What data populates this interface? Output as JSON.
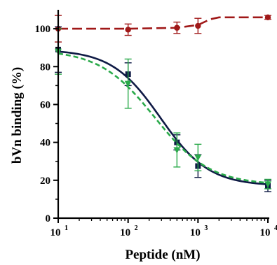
{
  "chart_data": {
    "type": "scatter",
    "xlabel": "Peptide (nM)",
    "ylabel": "bVn binding (%)",
    "xscale": "log",
    "xlim": [
      10,
      10000
    ],
    "ylim": [
      0,
      110
    ],
    "grid": false,
    "legend": "none",
    "x_ticks": [
      {
        "base": "10",
        "exp": "1",
        "value": 10
      },
      {
        "base": "10",
        "exp": "2",
        "value": 100
      },
      {
        "base": "10",
        "exp": "3",
        "value": 1000
      },
      {
        "base": "10",
        "exp": "4",
        "value": 10000
      }
    ],
    "y_ticks": [
      "0",
      "20",
      "40",
      "60",
      "80",
      "100"
    ],
    "series": [
      {
        "color": "#a01818",
        "line_style": "long-dash",
        "marker": "circle",
        "x": [
          10,
          100,
          500,
          1000,
          10000
        ],
        "y": [
          100,
          99.5,
          100.5,
          101.5,
          106
        ],
        "err": [
          7,
          3,
          3,
          4,
          1
        ],
        "curve_x": [
          10,
          100,
          500,
          1000,
          1500,
          2000,
          3000,
          10000
        ],
        "curve_y": [
          100,
          100,
          100.5,
          102,
          105,
          106,
          106,
          106
        ]
      },
      {
        "color": "#0f1a45",
        "line_style": "solid",
        "marker": "square",
        "x": [
          10,
          100,
          500,
          1000,
          10000
        ],
        "y": [
          89,
          76,
          40,
          27.5,
          17
        ],
        "err": [
          12,
          6,
          4,
          6,
          3
        ],
        "curve": {
          "top": 89,
          "bottom": 17,
          "ic50": 290,
          "hill": 1.25
        }
      },
      {
        "color": "#2aaa4a",
        "line_style": "short-dash",
        "marker": "triangle-down",
        "x": [
          10,
          100,
          500,
          1000,
          10000
        ],
        "y": [
          88,
          71,
          36,
          32,
          18
        ],
        "err": [
          12,
          13,
          9,
          7,
          2.5
        ],
        "curve": {
          "top": 89,
          "bottom": 17.5,
          "ic50": 240,
          "hill": 1.1
        }
      }
    ]
  }
}
